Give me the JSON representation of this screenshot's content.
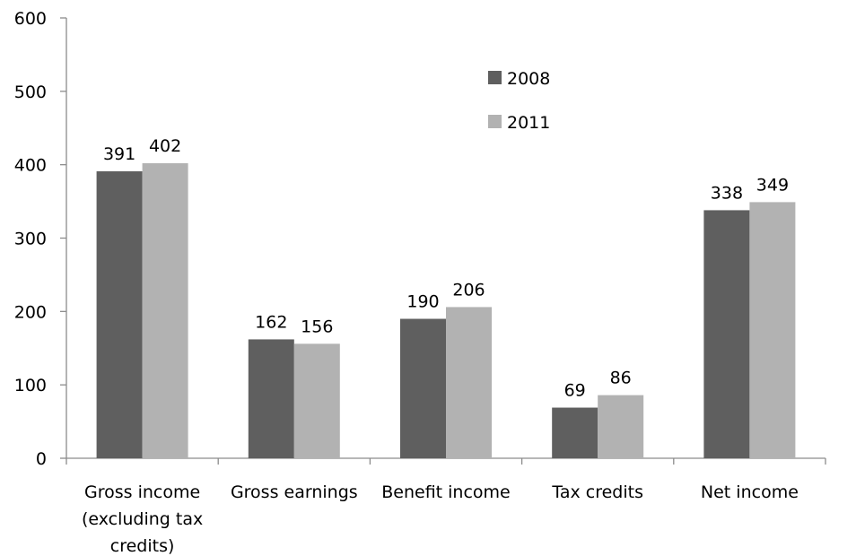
{
  "chart_data": {
    "type": "bar",
    "title": "",
    "xlabel": "",
    "ylabel": "",
    "ylim": [
      0,
      600
    ],
    "yticks": [
      0,
      100,
      200,
      300,
      400,
      500,
      600
    ],
    "grid": false,
    "legend_position": "top-center",
    "categories": [
      [
        "Gross income",
        "(excluding tax",
        "credits)"
      ],
      [
        "Gross earnings"
      ],
      [
        "Benefit income"
      ],
      [
        "Tax credits"
      ],
      [
        "Net income"
      ]
    ],
    "series": [
      {
        "name": "2008",
        "color": "#5f5f5f",
        "values": [
          391,
          162,
          190,
          69,
          338
        ]
      },
      {
        "name": "2011",
        "color": "#b2b2b2",
        "values": [
          402,
          156,
          206,
          86,
          349
        ]
      }
    ]
  }
}
